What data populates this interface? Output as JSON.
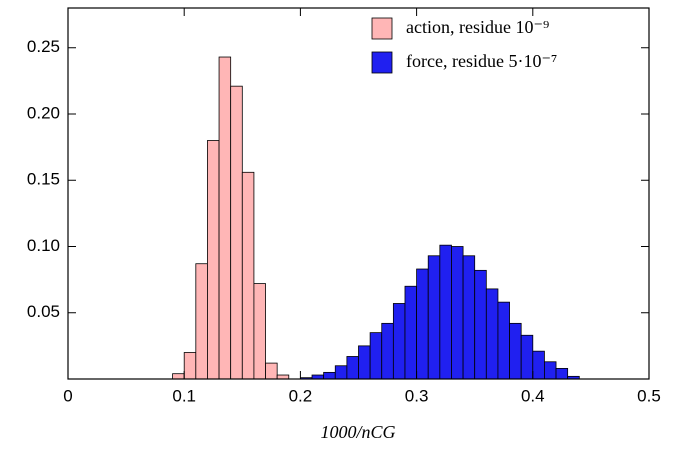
{
  "chart_data": {
    "type": "histogram",
    "x_label": "1000/nCG",
    "xlim": [
      0,
      0.5
    ],
    "xticks": [
      0,
      0.1,
      0.2,
      0.3,
      0.4,
      0.5
    ],
    "ylim": [
      0,
      0.28
    ],
    "yticks": [
      0.05,
      {
        "value": 0.1,
        "label": "0.10"
      },
      0.15,
      {
        "value": 0.2,
        "label": "0.20"
      },
      0.25
    ],
    "legend": "upper right",
    "series": [
      {
        "name": "action, residue 10⁻⁹",
        "color": "#ffb6b6",
        "bins": [
          0.09,
          0.1,
          0.11,
          0.12,
          0.13,
          0.14,
          0.15,
          0.16,
          0.17,
          0.18,
          0.19
        ],
        "values": [
          0.004,
          0.02,
          0.087,
          0.18,
          0.243,
          0.221,
          0.156,
          0.072,
          0.012,
          0.003
        ]
      },
      {
        "name": "force, residue 5·10⁻⁷",
        "color": "#2020f0",
        "bins": [
          0.2,
          0.21,
          0.22,
          0.23,
          0.24,
          0.25,
          0.26,
          0.27,
          0.28,
          0.29,
          0.3,
          0.31,
          0.32,
          0.33,
          0.34,
          0.35,
          0.36,
          0.37,
          0.38,
          0.39,
          0.4,
          0.41,
          0.42,
          0.43,
          0.44
        ],
        "values": [
          0.001,
          0.003,
          0.005,
          0.01,
          0.017,
          0.025,
          0.035,
          0.042,
          0.057,
          0.07,
          0.083,
          0.093,
          0.101,
          0.1,
          0.093,
          0.082,
          0.068,
          0.058,
          0.042,
          0.033,
          0.021,
          0.013,
          0.008,
          0.002
        ]
      }
    ]
  }
}
